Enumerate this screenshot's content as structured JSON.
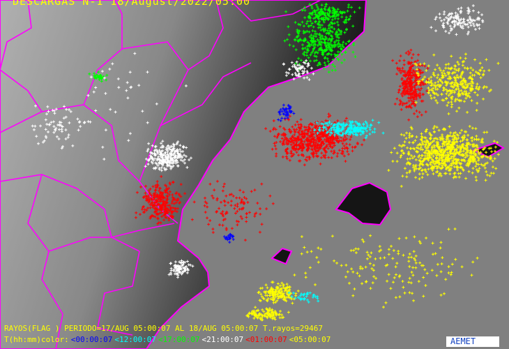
{
  "map": {
    "title": "DESCARGAS N-1 18/August/2022/05:00",
    "info_line": "RAYOS(FLAG ) PERIODO=17/AUG 05:00:07 AL 18/AUG 05:00:07  T.rayos=29467",
    "legend_label": "T(hh:mm)color:",
    "legend": [
      {
        "label": "<00:00:07",
        "color": "#0000ff"
      },
      {
        "label": "<12:00:07",
        "color": "#00ffff"
      },
      {
        "label": "<17:00:07",
        "color": "#00ff00"
      },
      {
        "label": "<21:00:07",
        "color": "#ffffff"
      },
      {
        "label": "<01:00:07",
        "color": "#ff0000"
      },
      {
        "label": "<05:00:07",
        "color": "#ffff00"
      }
    ],
    "total_strikes": 29467,
    "logo": "AEMET",
    "colors": {
      "sea": "#808080",
      "border": "#ff00ff",
      "label": "#ffff00"
    }
  }
}
